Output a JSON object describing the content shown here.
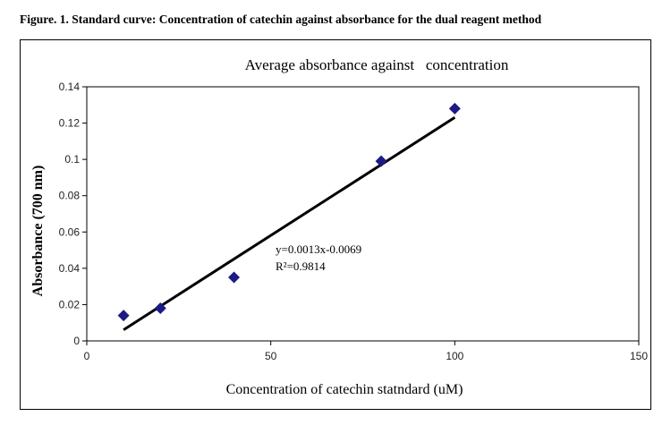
{
  "figure_caption": "Figure. 1.  Standard curve: Concentration of catechin against absorbance for the dual reagent method",
  "chart_data": {
    "type": "scatter",
    "title": "Average absorbance against   concentration",
    "xlabel": "Concentration of catechin statndard (uM)",
    "ylabel": "Absorbance (700 nm)",
    "xlim": [
      0,
      150
    ],
    "ylim": [
      0,
      0.14
    ],
    "x_ticks": [
      0,
      50,
      100,
      150
    ],
    "y_ticks": [
      0,
      0.02,
      0.04,
      0.06,
      0.08,
      0.1,
      0.12,
      0.14
    ],
    "x_tick_labels": [
      "0",
      "50",
      "100",
      "150"
    ],
    "y_tick_labels": [
      "0",
      "0.02",
      "0.04",
      "0.06",
      "0.08",
      "0.1",
      "0.12",
      "0.14"
    ],
    "points": [
      {
        "x": 10,
        "y": 0.014
      },
      {
        "x": 20,
        "y": 0.018
      },
      {
        "x": 40,
        "y": 0.035
      },
      {
        "x": 80,
        "y": 0.099
      },
      {
        "x": 100,
        "y": 0.128
      }
    ],
    "trendline": {
      "slope": 0.0013,
      "intercept": -0.0069,
      "x_range": [
        10,
        100
      ]
    },
    "equation_text": "y=0.0013x-0.0069",
    "r2_text": "R²=0.9814",
    "marker_color": "#1a1a8c",
    "line_color": "#000000"
  }
}
